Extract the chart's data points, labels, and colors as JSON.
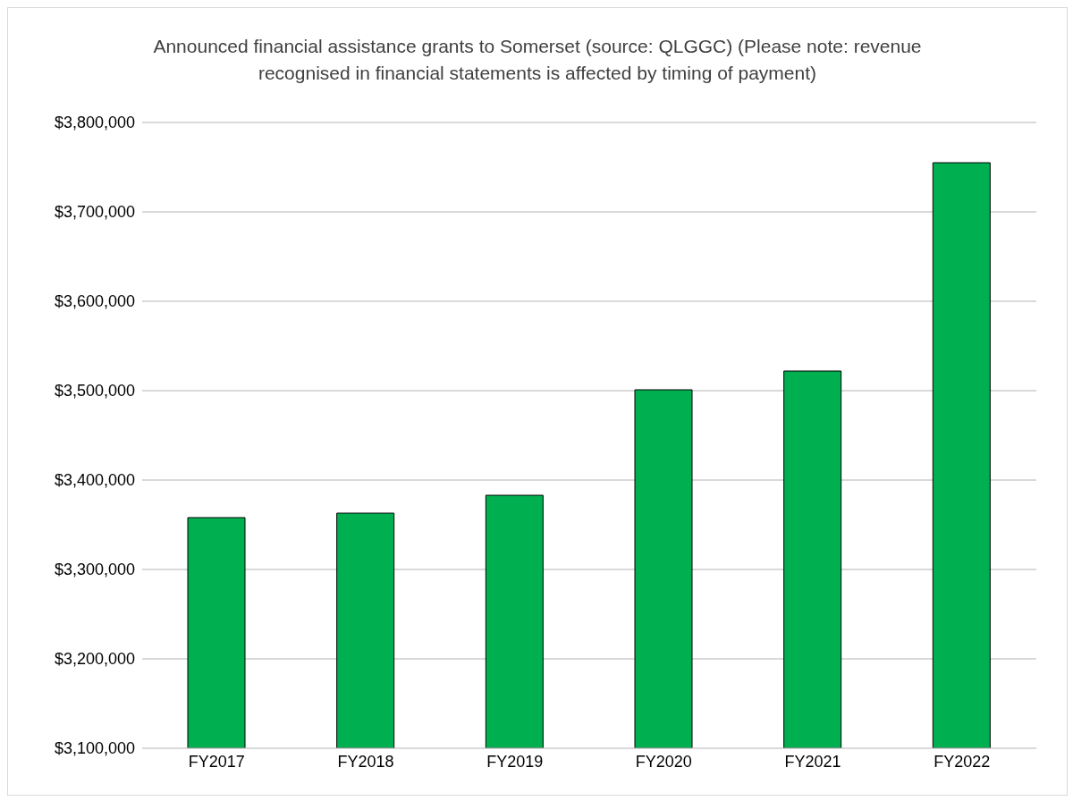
{
  "chart_data": {
    "type": "bar",
    "title": "Announced financial assistance grants to Somerset (source: QLGGC) (Please note: revenue recognised in financial statements is affected by timing of payment)",
    "categories": [
      "FY2017",
      "FY2018",
      "FY2019",
      "FY2020",
      "FY2021",
      "FY2022"
    ],
    "values": [
      3358000,
      3363000,
      3383000,
      3501000,
      3522000,
      3755000
    ],
    "color": "#00b050",
    "ylim": [
      3100000,
      3800000
    ],
    "yticks": [
      {
        "value": 3100000,
        "label": "$3,100,000"
      },
      {
        "value": 3200000,
        "label": "$3,200,000"
      },
      {
        "value": 3300000,
        "label": "$3,300,000"
      },
      {
        "value": 3400000,
        "label": "$3,400,000"
      },
      {
        "value": 3500000,
        "label": "$3,500,000"
      },
      {
        "value": 3600000,
        "label": "$3,600,000"
      },
      {
        "value": 3700000,
        "label": "$3,700,000"
      },
      {
        "value": 3800000,
        "label": "$3,800,000"
      }
    ],
    "grid": true
  }
}
